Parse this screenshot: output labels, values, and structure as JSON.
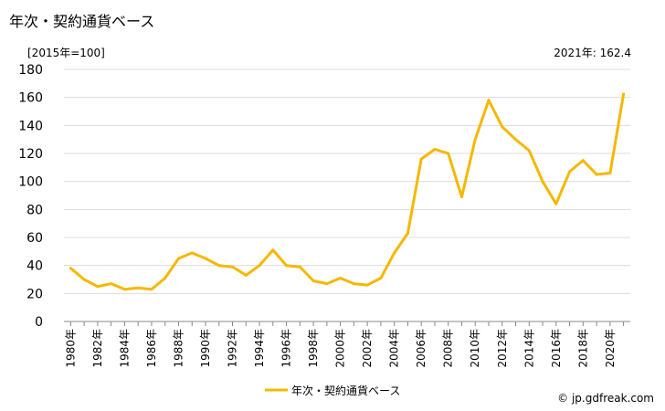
{
  "title": "年次・契約通貨ベース",
  "unit_label": "[2015年=100]",
  "latest_value_label": "2021年: 162.4",
  "credit": "© jp.gdfreak.com",
  "colors": {
    "series": "#f5b800",
    "grid": "#dcdcdc",
    "axis": "#888888"
  },
  "chart_data": {
    "type": "line",
    "title": "年次・契約通貨ベース",
    "xlabel": "",
    "ylabel": "[2015年=100]",
    "ylim": [
      0,
      180
    ],
    "yticks": [
      0,
      20,
      40,
      60,
      80,
      100,
      120,
      140,
      160,
      180
    ],
    "grid": true,
    "legend": "bottom",
    "x": [
      1980,
      1981,
      1982,
      1983,
      1984,
      1985,
      1986,
      1987,
      1988,
      1989,
      1990,
      1991,
      1992,
      1993,
      1994,
      1995,
      1996,
      1997,
      1998,
      1999,
      2000,
      2001,
      2002,
      2003,
      2004,
      2005,
      2006,
      2007,
      2008,
      2009,
      2010,
      2011,
      2012,
      2013,
      2014,
      2015,
      2016,
      2017,
      2018,
      2019,
      2020,
      2021
    ],
    "xtick_labels": [
      "1980年",
      "1982年",
      "1984年",
      "1986年",
      "1988年",
      "1990年",
      "1992年",
      "1994年",
      "1996年",
      "1998年",
      "2000年",
      "2002年",
      "2004年",
      "2006年",
      "2008年",
      "2010年",
      "2012年",
      "2014年",
      "2016年",
      "2018年",
      "2020年"
    ],
    "series": [
      {
        "name": "年次・契約通貨ベース",
        "values": [
          38,
          30,
          25,
          27,
          23,
          24,
          23,
          31,
          45,
          49,
          45,
          40,
          39,
          33,
          40,
          51,
          40,
          39,
          29,
          27,
          31,
          27,
          26,
          31,
          49,
          63,
          116,
          123,
          120,
          89,
          130,
          158,
          139,
          130,
          122,
          100,
          84,
          107,
          115,
          105,
          106,
          162.4
        ]
      }
    ]
  }
}
